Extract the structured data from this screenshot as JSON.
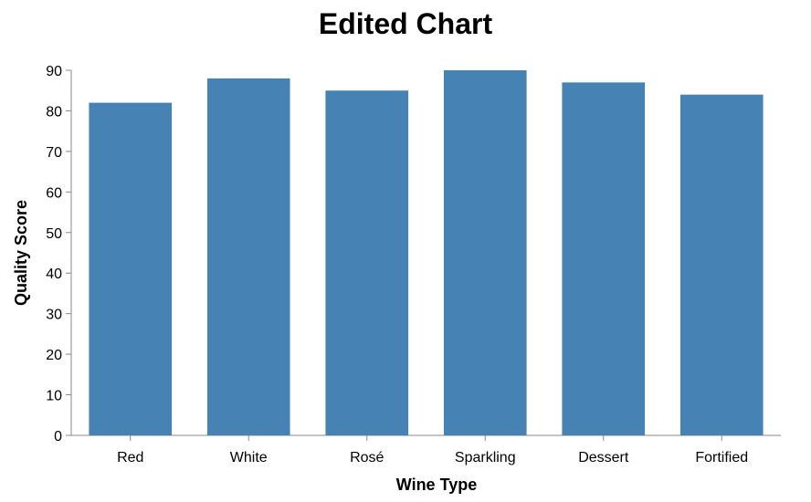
{
  "chart_data": {
    "type": "bar",
    "title": "Edited Chart",
    "xlabel": "Wine Type",
    "ylabel": "Quality Score",
    "categories": [
      "Red",
      "White",
      "Rosé",
      "Sparkling",
      "Dessert",
      "Fortified"
    ],
    "values": [
      82,
      88,
      85,
      90,
      87,
      84
    ],
    "ylim": [
      0,
      90
    ],
    "yticks": [
      0,
      10,
      20,
      30,
      40,
      50,
      60,
      70,
      80,
      90
    ],
    "grid": false,
    "bar_color": "#4682b4",
    "axis_color": "#888888"
  }
}
